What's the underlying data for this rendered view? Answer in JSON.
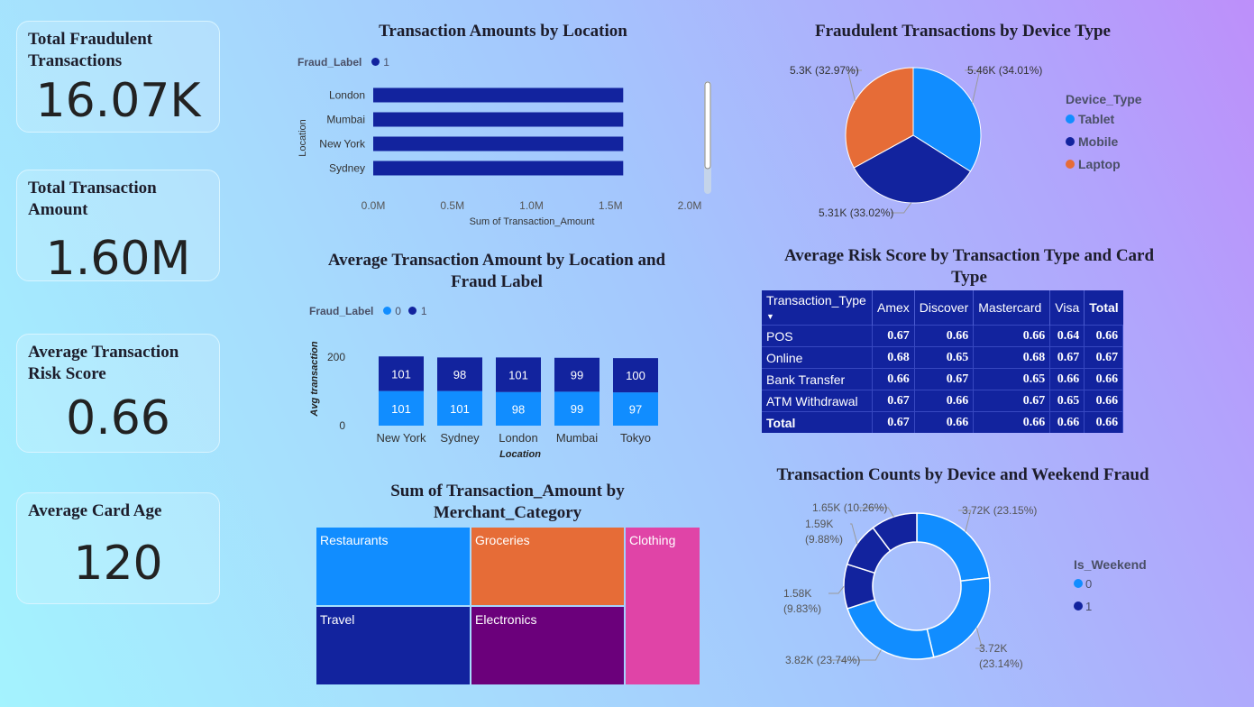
{
  "kpis": [
    {
      "title": "Total Fraudulent Transactions",
      "value": "16.07K"
    },
    {
      "title": "Total Transaction Amount",
      "value": "1.60M"
    },
    {
      "title": "Average Transaction Risk Score",
      "value": "0.66"
    },
    {
      "title": "Average Card Age",
      "value": "120"
    }
  ],
  "colors": {
    "light_blue": "#118dff",
    "dark_blue": "#12239e",
    "orange": "#e66c37",
    "purple": "#6b007b",
    "pink": "#e044a7"
  },
  "chart_data": [
    {
      "type": "bar",
      "orientation": "horizontal",
      "title": "Transaction Amounts by Location",
      "legend_title": "Fraud_Label",
      "legend_items": [
        "1"
      ],
      "categories": [
        "London",
        "Mumbai",
        "New York",
        "Sydney"
      ],
      "values": [
        1580000,
        1580000,
        1580000,
        1580000
      ],
      "xlabel": "Sum of Transaction_Amount",
      "ylabel": "Location",
      "xticks": [
        "0.0M",
        "0.5M",
        "1.0M",
        "1.5M",
        "2.0M"
      ],
      "xlim": [
        0,
        2000000
      ]
    },
    {
      "type": "bar",
      "stacked": true,
      "title": "Average Transaction Amount by Location and Fraud Label",
      "legend_title": "Fraud_Label",
      "categories": [
        "New York",
        "Sydney",
        "London",
        "Mumbai",
        "Tokyo"
      ],
      "series": [
        {
          "name": "0",
          "values": [
            101,
            101,
            98,
            99,
            97
          ]
        },
        {
          "name": "1",
          "values": [
            101,
            98,
            101,
            99,
            100
          ]
        }
      ],
      "xlabel": "Location",
      "ylabel": "Avg transaction",
      "yticks": [
        "0",
        "200"
      ],
      "ylim": [
        0,
        220
      ]
    },
    {
      "type": "treemap",
      "title": "Sum of Transaction_Amount by Merchant_Category",
      "categories": [
        "Restaurants",
        "Groceries",
        "Clothing",
        "Travel",
        "Electronics"
      ]
    },
    {
      "type": "pie",
      "title": "Fraudulent Transactions by Device Type",
      "legend_title": "Device_Type",
      "slices": [
        {
          "name": "Tablet",
          "value": 5460,
          "label": "5.46K (34.01%)"
        },
        {
          "name": "Mobile",
          "value": 5310,
          "label": "5.31K (33.02%)"
        },
        {
          "name": "Laptop",
          "value": 5300,
          "label": "5.3K (32.97%)"
        }
      ]
    },
    {
      "type": "table",
      "title": "Average Risk Score by Transaction Type and Card Type",
      "columns": [
        "Transaction_Type",
        "Amex",
        "Discover",
        "Mastercard",
        "Visa",
        "Total"
      ],
      "rows": [
        [
          "POS",
          "0.67",
          "0.66",
          "0.66",
          "0.64",
          "0.66"
        ],
        [
          "Online",
          "0.68",
          "0.65",
          "0.68",
          "0.67",
          "0.67"
        ],
        [
          "Bank Transfer",
          "0.66",
          "0.67",
          "0.65",
          "0.66",
          "0.66"
        ],
        [
          "ATM Withdrawal",
          "0.67",
          "0.66",
          "0.67",
          "0.65",
          "0.66"
        ],
        [
          "Total",
          "0.67",
          "0.66",
          "0.66",
          "0.66",
          "0.66"
        ]
      ]
    },
    {
      "type": "donut",
      "title": "Transaction Counts by Device and Weekend Fraud",
      "legend_title": "Is_Weekend",
      "legend_items": [
        "0",
        "1"
      ],
      "slices": [
        {
          "series": "0",
          "value": 3720,
          "label_lines": [
            "3.72K (23.15%)"
          ]
        },
        {
          "series": "0",
          "value": 3720,
          "label_lines": [
            "3.72K",
            "(23.14%)"
          ]
        },
        {
          "series": "0",
          "value": 3820,
          "label_lines": [
            "3.82K (23.74%)"
          ]
        },
        {
          "series": "1",
          "value": 1580,
          "label_lines": [
            "1.58K",
            "(9.83%)"
          ]
        },
        {
          "series": "1",
          "value": 1590,
          "label_lines": [
            "1.59K",
            "(9.88%)"
          ]
        },
        {
          "series": "1",
          "value": 1650,
          "label_lines": [
            "1.65K (10.26%)"
          ]
        }
      ]
    }
  ]
}
